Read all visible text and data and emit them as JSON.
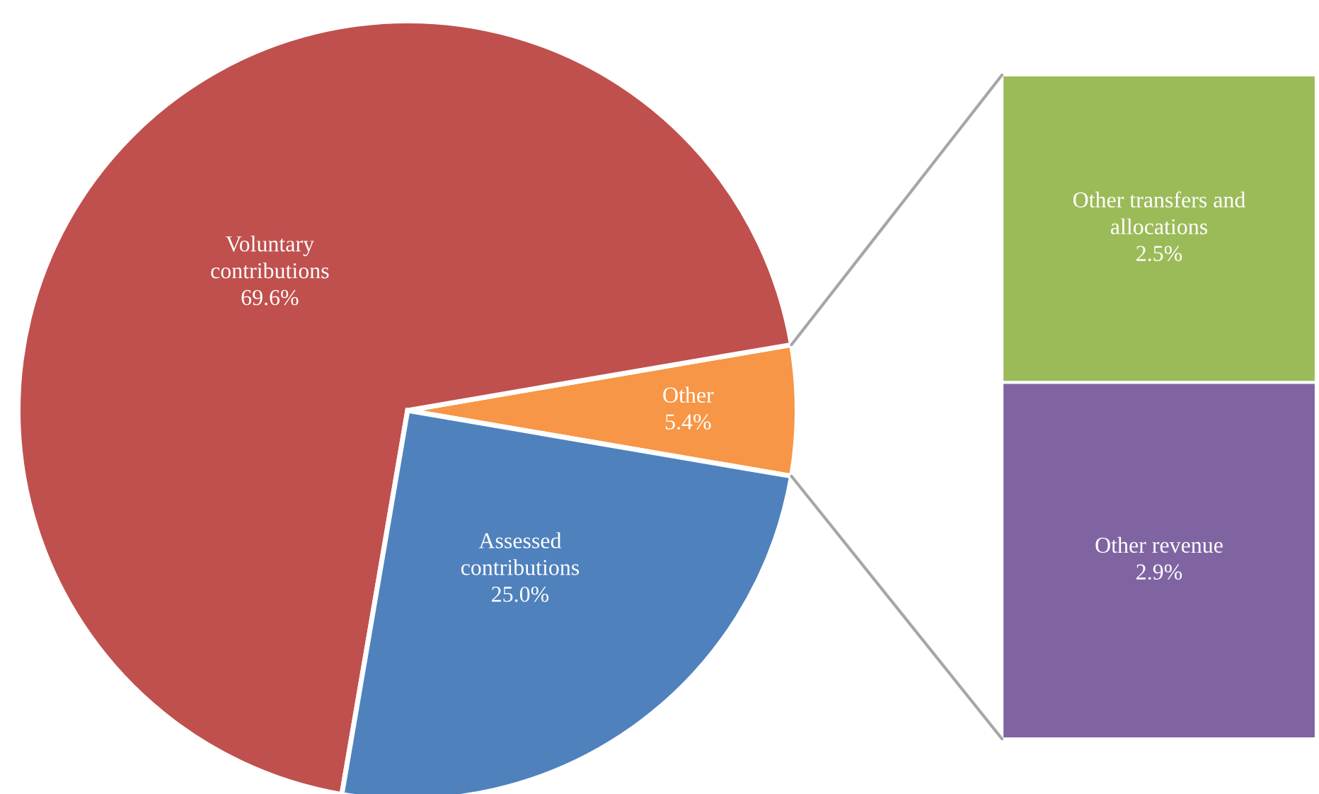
{
  "chart_data": [
    {
      "type": "pie",
      "categories": [
        "Other",
        "Voluntary contributions",
        "Assessed contributions"
      ],
      "values": [
        5.4,
        69.6,
        25.0
      ],
      "colors": [
        "#f79646",
        "#c0504d",
        "#4f81bd"
      ],
      "value_labels": [
        "5.4%",
        "69.6%",
        "25.0%"
      ],
      "legend": false
    },
    {
      "type": "bar",
      "stacked": true,
      "categories": [
        null
      ],
      "series": [
        {
          "name": "Other revenue",
          "color": "#8064a2",
          "values": [
            2.9
          ],
          "value_labels": [
            "2.9%"
          ]
        },
        {
          "name": "Other transfers and allocations",
          "color": "#9bbb59",
          "values": [
            2.5
          ],
          "value_labels": [
            "2.5%"
          ]
        }
      ]
    }
  ]
}
